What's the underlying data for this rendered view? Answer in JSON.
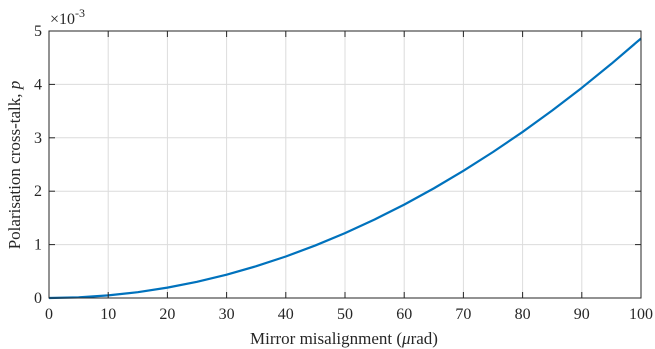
{
  "chart_data": {
    "type": "line",
    "xlabel_prefix": "Mirror misalignment (",
    "xlabel_symbol": "μ",
    "xlabel_suffix": "rad)",
    "ylabel_prefix": "Polarisation cross-talk, ",
    "ylabel_symbol": "p",
    "y_multiplier_base": "×10",
    "y_multiplier_exponent": "-3",
    "xlim": [
      0,
      100
    ],
    "ylim": [
      0,
      5
    ],
    "x_ticks": [
      0,
      10,
      20,
      30,
      40,
      50,
      60,
      70,
      80,
      90,
      100
    ],
    "y_ticks": [
      0,
      1,
      2,
      3,
      4,
      5
    ],
    "grid": true,
    "series": [
      {
        "color": "#0072BD",
        "x": [
          0,
          5,
          10,
          15,
          20,
          25,
          30,
          35,
          40,
          45,
          50,
          55,
          60,
          65,
          70,
          75,
          80,
          85,
          90,
          95,
          100
        ],
        "y": [
          0,
          0.012,
          0.049,
          0.109,
          0.194,
          0.304,
          0.437,
          0.595,
          0.777,
          0.984,
          1.215,
          1.47,
          1.749,
          2.053,
          2.381,
          2.734,
          3.11,
          3.511,
          3.936,
          4.386,
          4.86
        ]
      }
    ]
  }
}
